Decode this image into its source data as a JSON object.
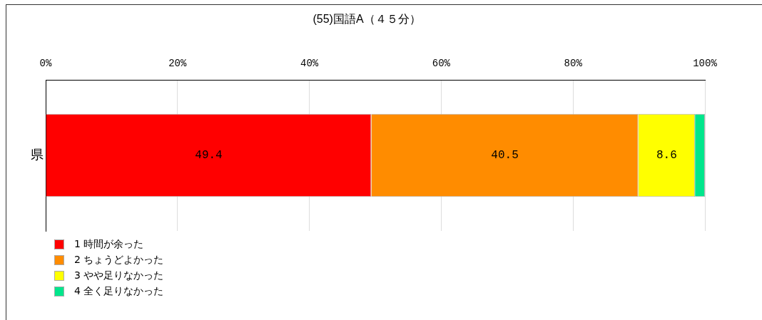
{
  "chart_data": {
    "type": "bar",
    "orientation": "horizontal",
    "stacked": true,
    "title": "(55)国語A（４５分）",
    "categories": [
      "県"
    ],
    "series": [
      {
        "name": "1 時間が余った",
        "color": "#ff0000",
        "values": [
          49.4
        ],
        "value_labels": [
          "49.4"
        ]
      },
      {
        "name": "2 ちょうどよかった",
        "color": "#ff8c00",
        "values": [
          40.5
        ],
        "value_labels": [
          "40.5"
        ]
      },
      {
        "name": "3 やや足りなかった",
        "color": "#ffff00",
        "values": [
          8.6
        ],
        "value_labels": [
          "8.6"
        ]
      },
      {
        "name": "4 全く足りなかった",
        "color": "#00e68c",
        "values": [
          1.5
        ],
        "value_labels": [
          null
        ]
      }
    ],
    "xlim": [
      0,
      100
    ],
    "xticks": [
      {
        "value": 0,
        "label": "0%"
      },
      {
        "value": 20,
        "label": "20%"
      },
      {
        "value": 40,
        "label": "40%"
      },
      {
        "value": 60,
        "label": "60%"
      },
      {
        "value": 80,
        "label": "80%"
      },
      {
        "value": 100,
        "label": "100%"
      }
    ],
    "grid": "x",
    "legend": "bottom left"
  }
}
